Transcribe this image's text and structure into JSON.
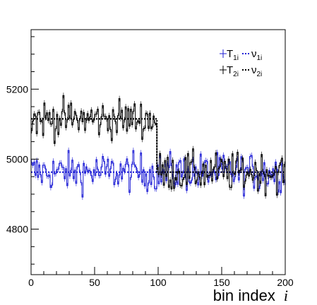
{
  "chart_data": {
    "type": "histogram-step",
    "title": "",
    "xlabel": "bin index",
    "xlabel_var": "i",
    "ylabel": "",
    "xlim": [
      0,
      200
    ],
    "ylim": [
      4670,
      5370
    ],
    "xticks": [
      0,
      50,
      100,
      150,
      200
    ],
    "yticks": [
      4800,
      5000,
      5200
    ],
    "grid": false,
    "legend_position": "top-right",
    "change_point": 100,
    "series": [
      {
        "name": "T",
        "sub": "1i",
        "kind": "histogram",
        "color": "#1f1fd6",
        "x_start": 0,
        "x_end": 200,
        "y_summary": "fluctuates around 4963 with a spread of about ±30 across all 200 bins"
      },
      {
        "name": "T",
        "sub": "2i",
        "kind": "histogram",
        "color": "#000000",
        "segments": [
          {
            "x_start": 0,
            "x_end": 99,
            "mean": 5115
          },
          {
            "x_start": 99,
            "x_end": 200,
            "mean": 4963
          }
        ],
        "spread": 30
      },
      {
        "name": "ν",
        "sub": "1i",
        "kind": "expected",
        "color": "#1f1fd6",
        "style": "dotted",
        "values": [
          {
            "x": 0,
            "y": 4963
          },
          {
            "x": 200,
            "y": 4963
          }
        ]
      },
      {
        "name": "ν",
        "sub": "2i",
        "kind": "expected",
        "color": "#000000",
        "style": "dotted",
        "values": [
          {
            "x": 0,
            "y": 5115
          },
          {
            "x": 99,
            "y": 5115
          },
          {
            "x": 99,
            "y": 4963
          },
          {
            "x": 200,
            "y": 4963
          }
        ]
      }
    ]
  }
}
